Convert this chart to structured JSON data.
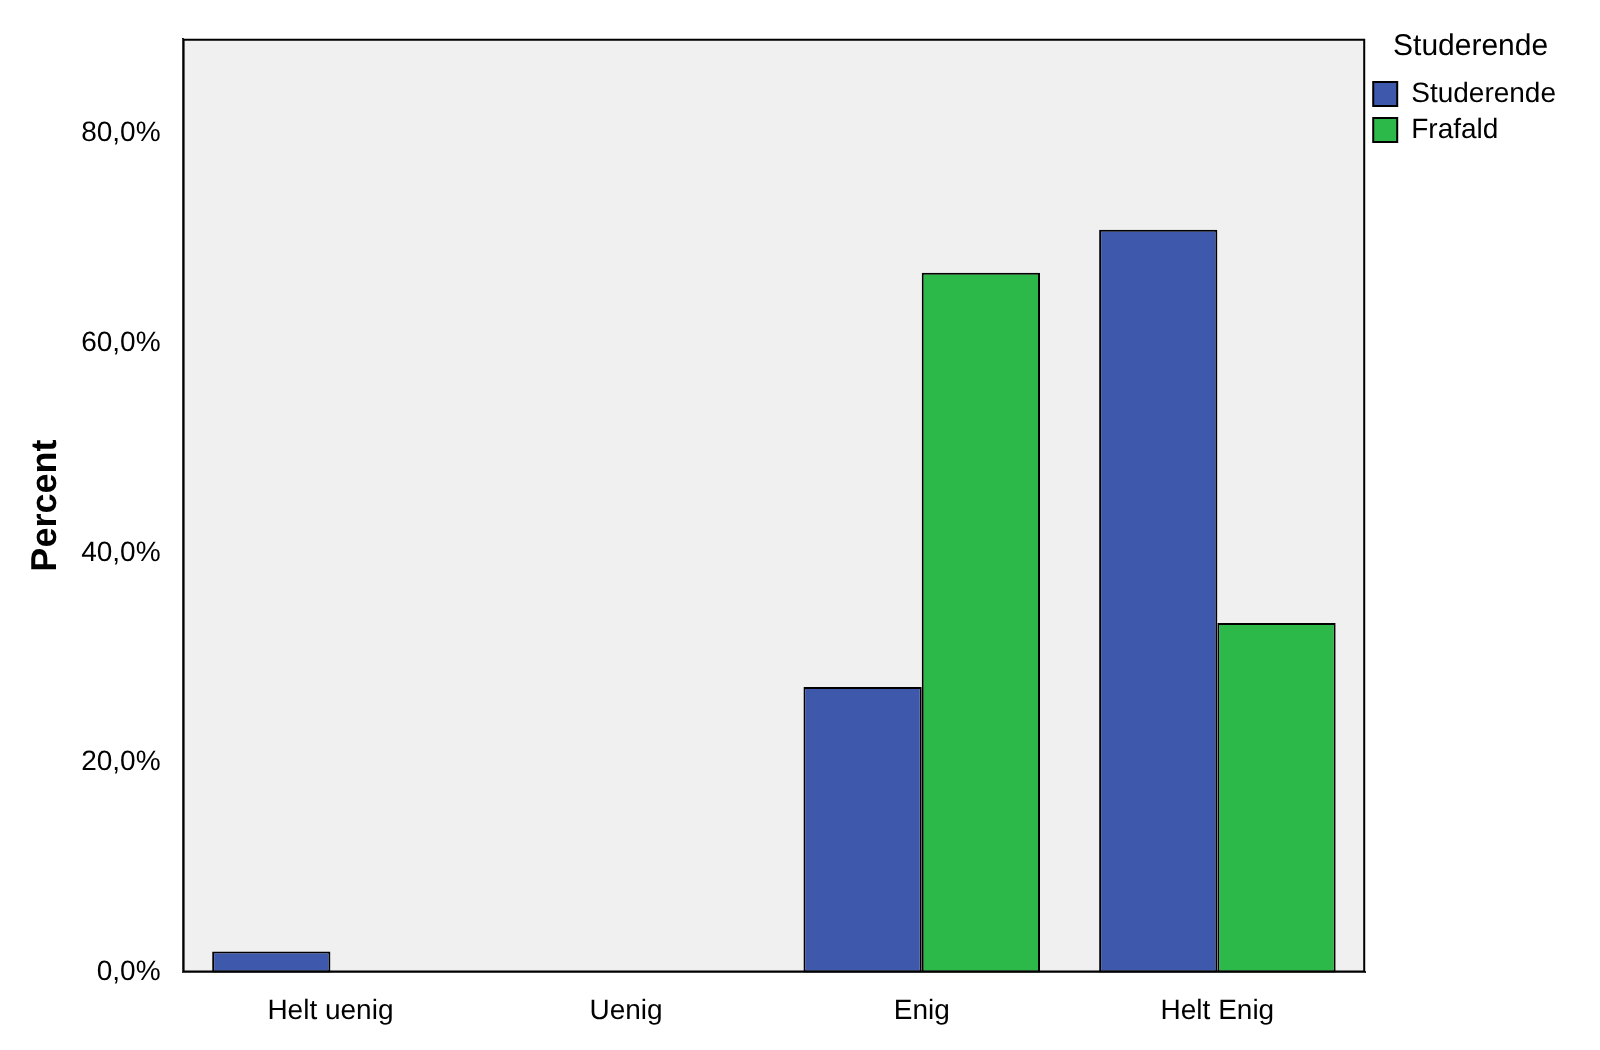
{
  "chart_data": {
    "type": "bar",
    "ylabel": "Percent",
    "legend_title": "Studerende",
    "legend": "top right",
    "grid": false,
    "categories": [
      "Helt uenig",
      "Uenig",
      "Enig",
      "Helt Enig"
    ],
    "series": [
      {
        "name": "Studerende",
        "color": "#3e58ac",
        "values": [
          2.0,
          0,
          27.2,
          70.8
        ]
      },
      {
        "name": "Frafald",
        "color": "#2db84a",
        "values": [
          0,
          0,
          66.7,
          33.3
        ]
      }
    ],
    "ylim": [
      0,
      89
    ],
    "yticks": [
      {
        "value": 0,
        "label": "0,0%"
      },
      {
        "value": 20,
        "label": "20,0%"
      },
      {
        "value": 40,
        "label": "40,0%"
      },
      {
        "value": 60,
        "label": "60,0%"
      },
      {
        "value": 80,
        "label": "80,0%"
      }
    ]
  }
}
